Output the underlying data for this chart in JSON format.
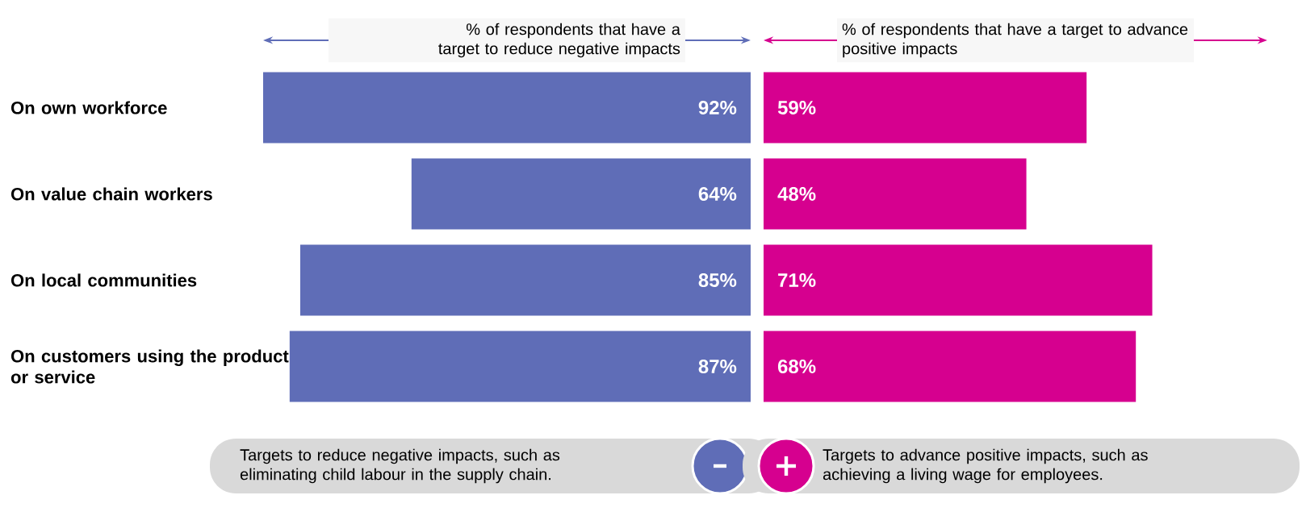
{
  "chart_data": [
    {
      "type": "bar",
      "orientation": "horizontal",
      "tick_labels": "y",
      "categories": [
        "On own workforce",
        "On value chain workers",
        "On local communities",
        "On customers using the product or service"
      ],
      "xlabel": "% of respondents that have a target to reduce negative impacts",
      "legend": "bottom",
      "series": [
        {
          "name": "Targets to reduce negative impacts, such as eliminating child labour in the supply chain.",
          "color": "#5f6db7",
          "values": [
            92,
            64,
            85,
            87
          ],
          "value_labels": [
            "92%",
            "64%",
            "85%",
            "87%"
          ]
        }
      ]
    },
    {
      "type": "bar",
      "orientation": "horizontal",
      "tick_labels": false,
      "categories": [
        null,
        null,
        null,
        null
      ],
      "xlabel": "% of respondents that have a target to advance positive impacts",
      "legend": "bottom",
      "series": [
        {
          "name": "Targets to advance positive impacts, such as achieving a living wage for employees.",
          "color": "#d6008f",
          "values": [
            59,
            48,
            71,
            68
          ],
          "value_labels": [
            "59%",
            "48%",
            "71%",
            "68%"
          ]
        }
      ]
    }
  ]
}
